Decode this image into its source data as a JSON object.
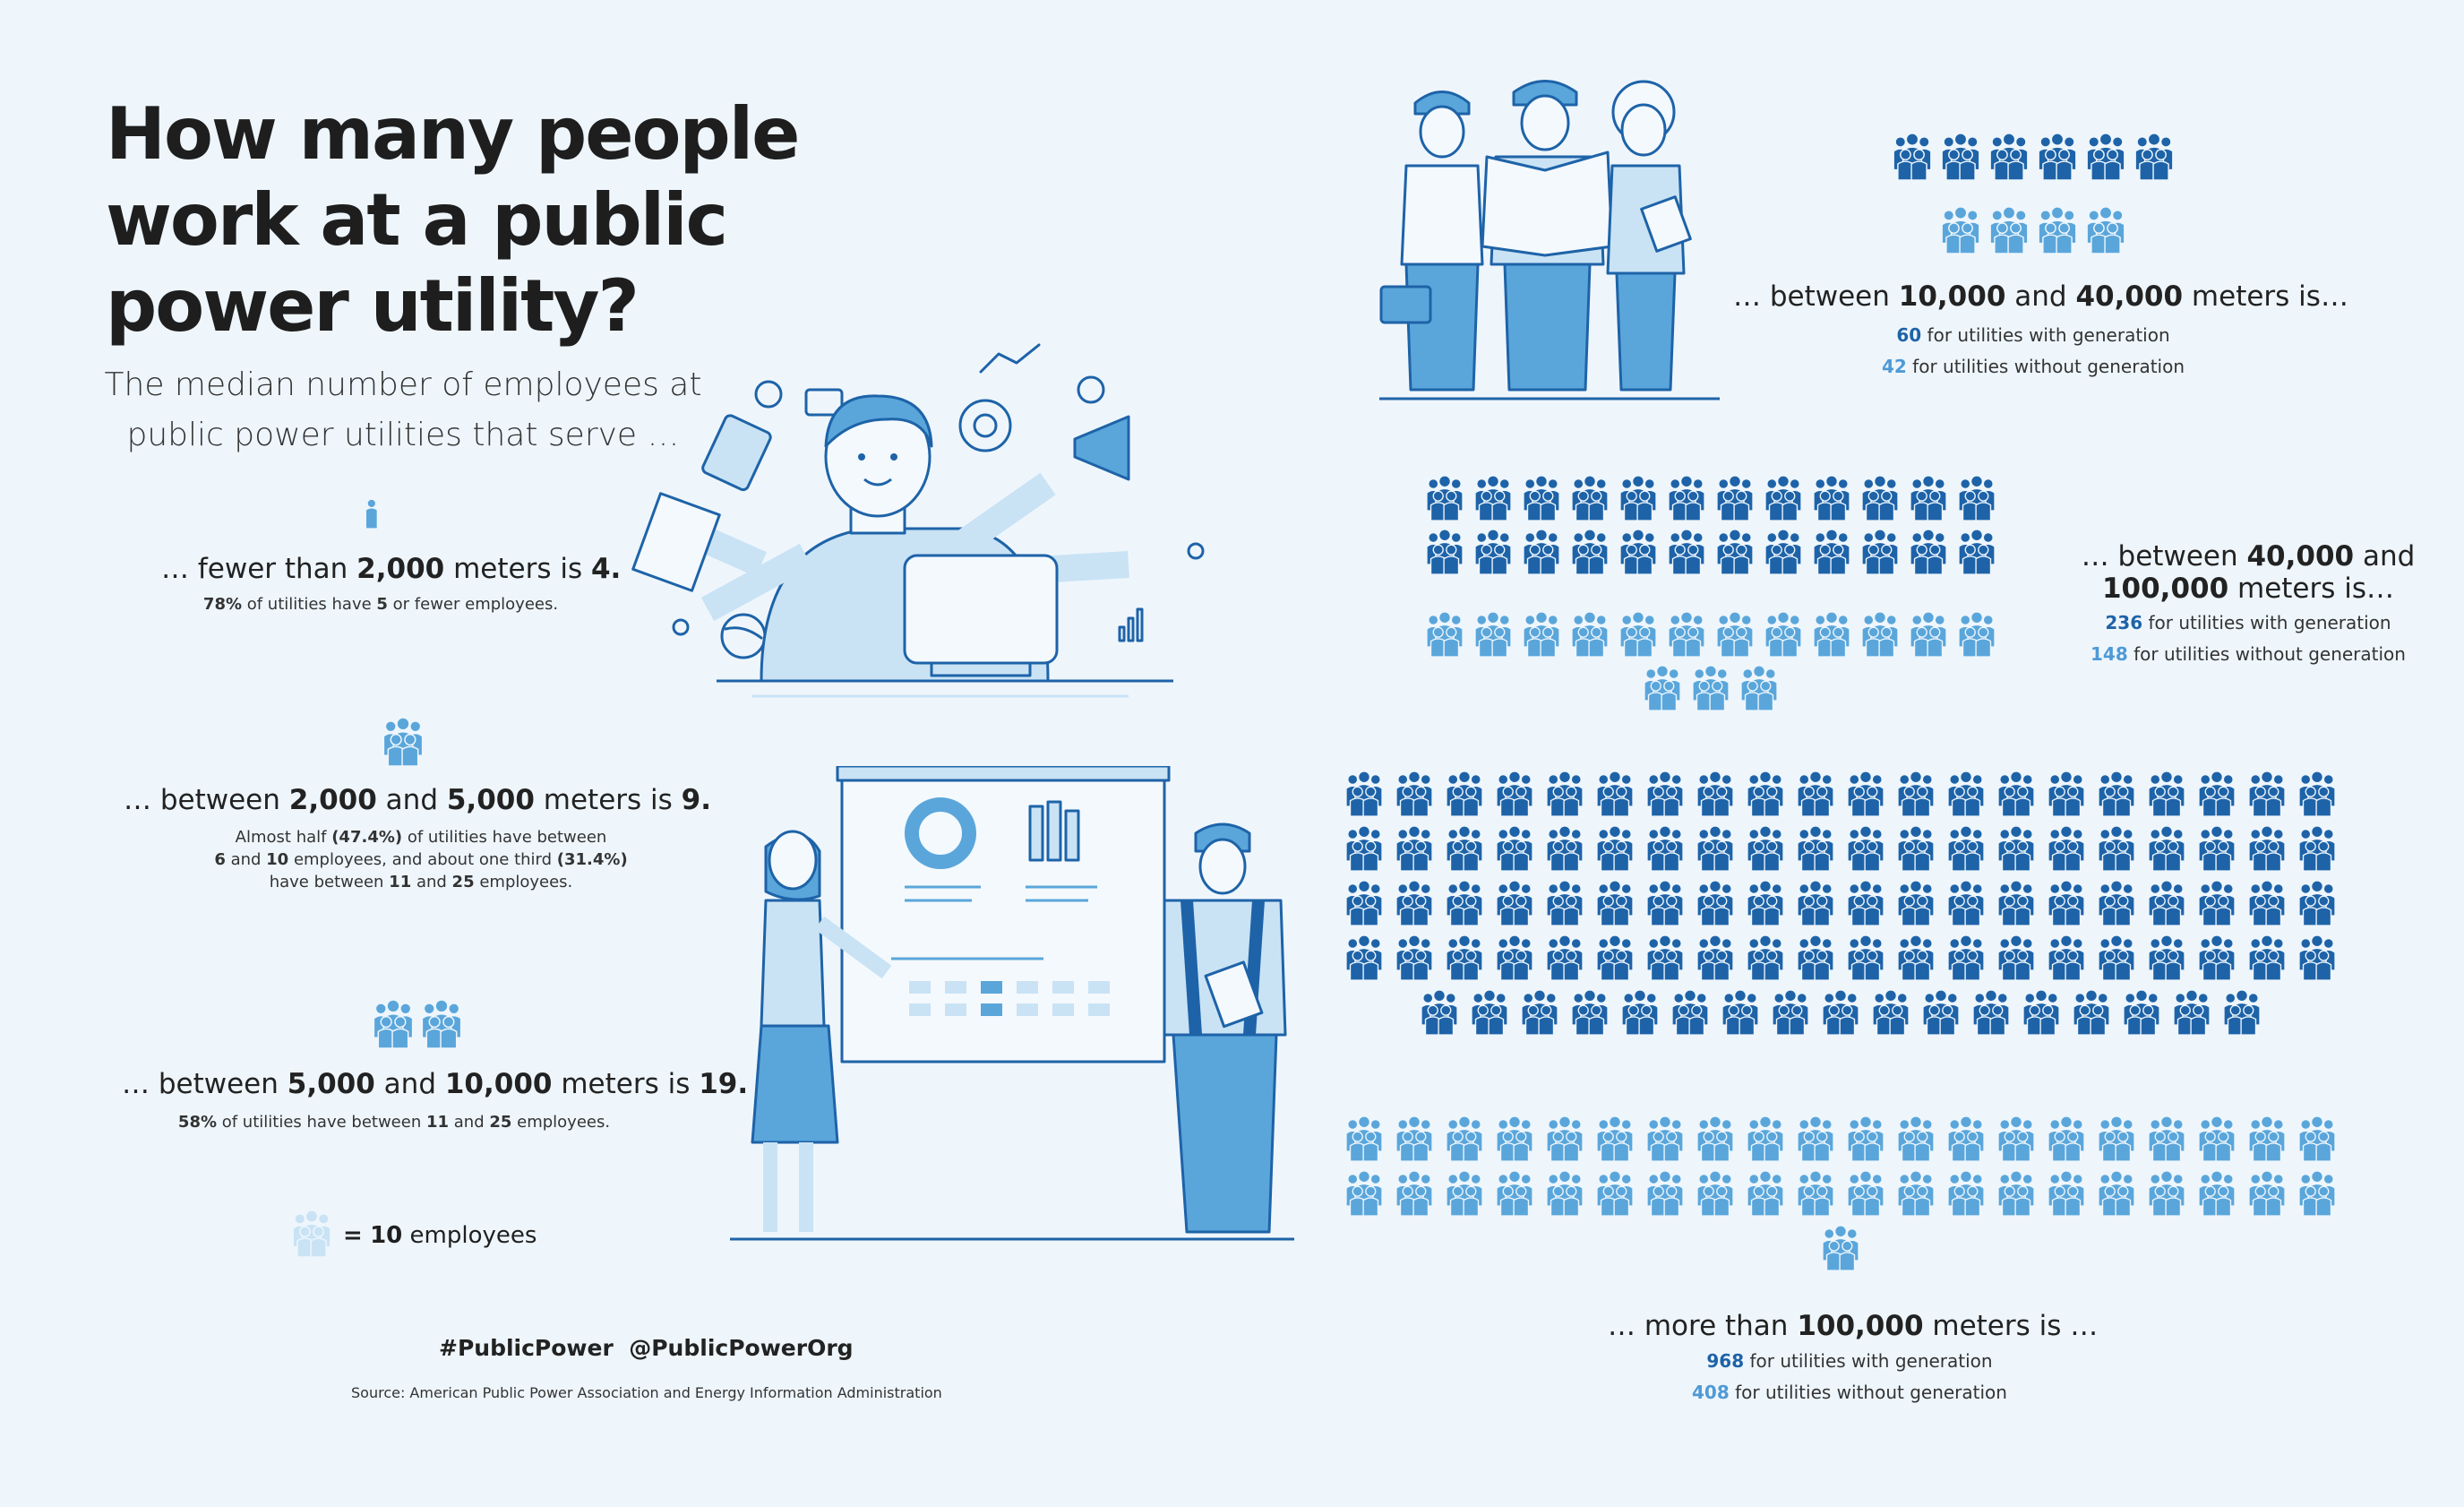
{
  "title": "How many people work at a public power utility?",
  "subtitle": "The median number of employees at public power utilities that serve …",
  "colors": {
    "dark_blue": "#1e63a8",
    "light_blue": "#5aa6db",
    "pale_blue": "#c9e3f5",
    "background": "#eef6fc"
  },
  "icon_name": "employee-group-icon",
  "legend": {
    "value": "10",
    "label": "employees",
    "eq": "="
  },
  "categories": [
    {
      "id": "lt2000",
      "pre": "… fewer than ",
      "a": "2,000",
      "mid": "",
      "b": "",
      "post": " meters is ",
      "median": "4.",
      "note_parts": {
        "p1": "78%",
        "t1": " of utilities have ",
        "p2": "5",
        "t2": " or fewer employees."
      },
      "icons_full": 0,
      "icons_partial": 0.4
    },
    {
      "id": "2000to5000",
      "pre": "… between ",
      "a": "2,000",
      "mid": " and ",
      "b": "5,000",
      "post": " meters is ",
      "median": "9.",
      "note_lines": {
        "l1a": "Almost half ",
        "l1b": "(47.4%)",
        "l1c": " of utilities have between",
        "l2a": "6",
        "l2b": " and ",
        "l2c": "10",
        "l2d": " employees, and about one third ",
        "l2e": "(31.4%)",
        "l3a": "have between ",
        "l3b": "11",
        "l3c": " and ",
        "l3d": "25",
        "l3e": " employees."
      },
      "icons_full": 1
    },
    {
      "id": "5000to10000",
      "pre": "… between ",
      "a": "5,000",
      "mid": " and ",
      "b": "10,000",
      "post": " meters is ",
      "median": "19.",
      "note_parts": {
        "p1": "58%",
        "t1": " of utilities have between ",
        "p2": "11",
        "t2": " and ",
        "p3": "25",
        "t3": " employees."
      },
      "icons_full": 2
    },
    {
      "id": "10000to40000",
      "pre": "… between ",
      "a": "10,000",
      "mid": " and ",
      "b": "40,000",
      "post": " meters is…",
      "with_gen": "60",
      "without_gen": "42",
      "with_label": " for utilities with generation",
      "without_label": " for utilities without generation",
      "icons_with": 6,
      "icons_without": 4
    },
    {
      "id": "40000to100000",
      "line1_pre": "… between ",
      "a": "40,000",
      "line1_post": " and",
      "b": "100,000",
      "line2_post": " meters is…",
      "with_gen": "236",
      "without_gen": "148",
      "with_label": " for utilities with generation",
      "without_label": " for utilities without generation",
      "icons_with": 24,
      "icons_without": 15
    },
    {
      "id": "gt100000",
      "pre": "… more than ",
      "a": "100,000",
      "post": " meters is …",
      "with_gen": "968",
      "without_gen": "408",
      "with_label": " for utilities with generation",
      "without_label": " for utilities without generation",
      "icons_with": 97,
      "icons_without": 41
    }
  ],
  "footer": {
    "hashtag": "#PublicPower",
    "handle": "@PublicPowerOrg",
    "source": "Source: American Public Power Association and Energy Information Administration"
  }
}
